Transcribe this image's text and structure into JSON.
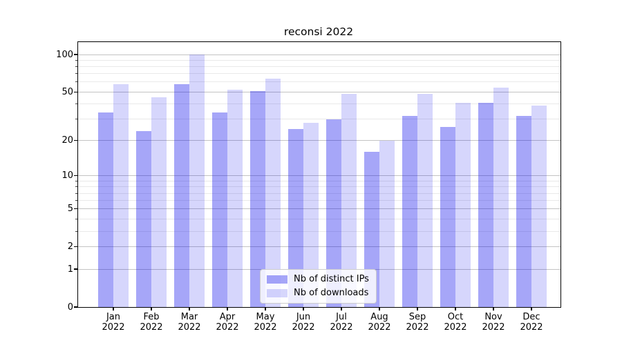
{
  "title": "reconsi 2022",
  "chart_data": {
    "type": "bar",
    "title": "reconsi 2022",
    "categories": [
      "Jan",
      "Feb",
      "Mar",
      "Apr",
      "May",
      "Jun",
      "Jul",
      "Aug",
      "Sep",
      "Oct",
      "Nov",
      "Dec"
    ],
    "category_year_label": "2022",
    "series": [
      {
        "key": "distinct-ips",
        "name": "Nb of distinct IPs",
        "color": "rgba(0,0,235,0.35)",
        "approx_hex_on_white": "#a7a7f7",
        "values": [
          34,
          24,
          58,
          34,
          51,
          25,
          30,
          16,
          32,
          26,
          41,
          32
        ]
      },
      {
        "key": "downloads",
        "name": "Nb of downloads",
        "color": "rgba(0,0,235,0.16)",
        "approx_hex_on_white": "#d8d8f8",
        "values": [
          58,
          45,
          100,
          52,
          64,
          28,
          48,
          20,
          48,
          41,
          54,
          39
        ]
      }
    ],
    "xlabel": "",
    "ylabel": "",
    "yscale": "log1p",
    "ylim": [
      0,
      100
    ],
    "y_major_ticks": [
      100,
      50,
      20,
      10,
      5,
      2,
      1,
      0
    ],
    "y_major_tick_labels": [
      "100",
      "50",
      "20",
      "10",
      "5",
      "2",
      "1",
      "0"
    ],
    "y_minor_ticks": [
      90,
      80,
      70,
      60,
      40,
      30,
      9,
      8,
      7,
      6,
      4,
      3
    ],
    "grid": true,
    "legend_position": "lower center",
    "grid_major_color": "#c3c3c3",
    "grid_minor_color": "#e9e9e9",
    "axis_color": "#000000"
  }
}
